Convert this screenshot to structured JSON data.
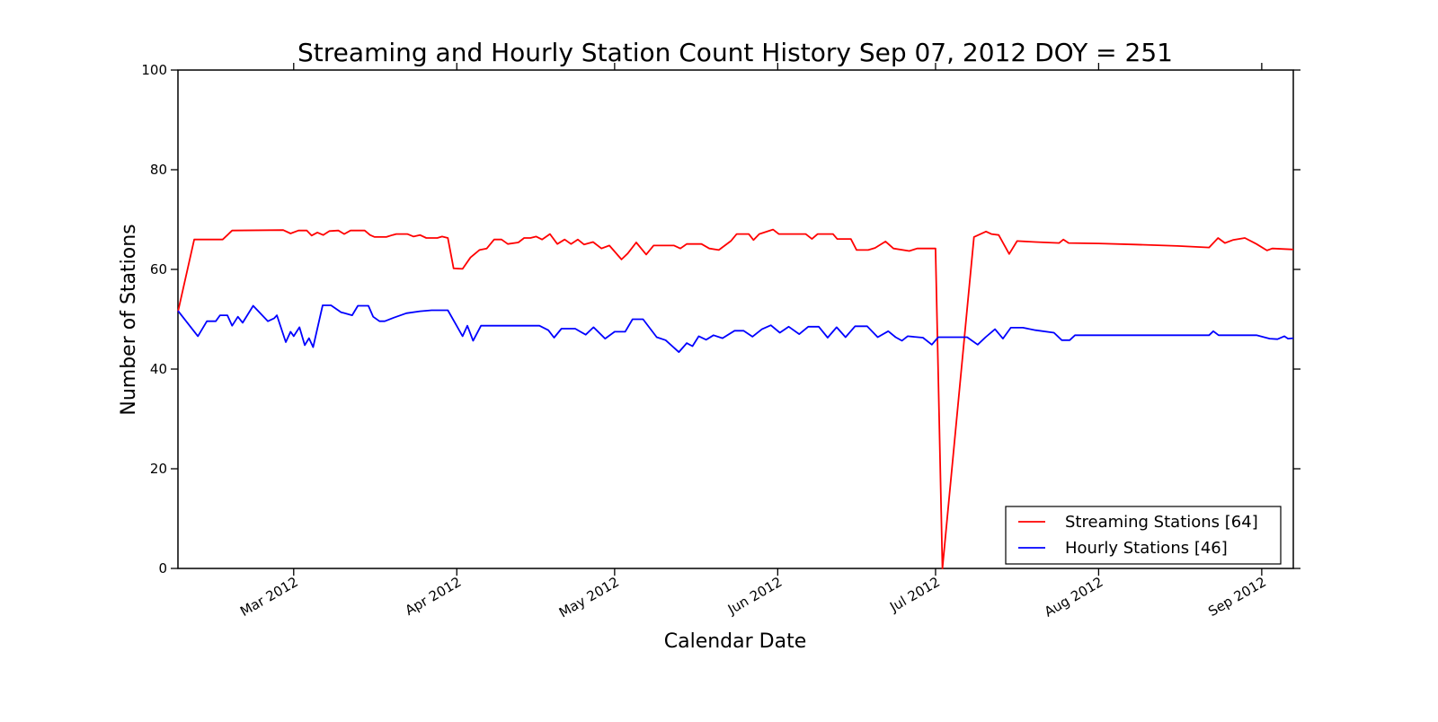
{
  "figure": {
    "title": "Streaming and Hourly Station Count History Sep 07, 2012 DOY = 251",
    "xlabel": "Calendar Date",
    "ylabel": "Number of Stations",
    "background_color": "#ffffff",
    "axes_color": "#000000"
  },
  "legend": {
    "position": "lower right",
    "entries": [
      {
        "label": "Streaming Stations [64]",
        "color": "#ff0000"
      },
      {
        "label": "Hourly Stations [46]",
        "color": "#0000ff"
      }
    ]
  },
  "chart_data": {
    "type": "line",
    "title": "Streaming and Hourly Station Count History Sep 07, 2012 DOY = 251",
    "xlabel": "Calendar Date",
    "ylabel": "Number of Stations",
    "ylim": [
      0,
      100
    ],
    "yticks": [
      0,
      20,
      40,
      60,
      80,
      100
    ],
    "grid": false,
    "x_axis_unit": "days, day 0 = Feb 08 2012, day 212 = Sep 07 2012",
    "xlim_days": [
      0,
      212
    ],
    "xticks": [
      {
        "day": 22,
        "label": "Mar 2012"
      },
      {
        "day": 53,
        "label": "Apr 2012"
      },
      {
        "day": 83,
        "label": "May 2012"
      },
      {
        "day": 114,
        "label": "Jun 2012"
      },
      {
        "day": 144,
        "label": "Jul 2012"
      },
      {
        "day": 175,
        "label": "Aug 2012"
      },
      {
        "day": 206,
        "label": "Sep 2012"
      }
    ],
    "series": [
      {
        "name": "Streaming Stations [64]",
        "color": "#ff0000",
        "final_value": 64,
        "points": [
          [
            0,
            51.5
          ],
          [
            3.1,
            66
          ],
          [
            8.5,
            66
          ],
          [
            10.3,
            67.8
          ],
          [
            20,
            67.9
          ],
          [
            21.4,
            67.2
          ],
          [
            22.9,
            67.8
          ],
          [
            24.5,
            67.8
          ],
          [
            25.4,
            66.8
          ],
          [
            26.5,
            67.4
          ],
          [
            27.6,
            66.9
          ],
          [
            28.8,
            67.7
          ],
          [
            30.5,
            67.8
          ],
          [
            31.6,
            67.1
          ],
          [
            32.8,
            67.8
          ],
          [
            35.5,
            67.8
          ],
          [
            36.5,
            66.9
          ],
          [
            37.4,
            66.5
          ],
          [
            39.6,
            66.5
          ],
          [
            40.8,
            66.9
          ],
          [
            41.5,
            67.1
          ],
          [
            43.6,
            67.1
          ],
          [
            44.8,
            66.6
          ],
          [
            46,
            66.9
          ],
          [
            47.2,
            66.3
          ],
          [
            49.3,
            66.3
          ],
          [
            50.2,
            66.6
          ],
          [
            51.3,
            66.3
          ],
          [
            52.4,
            60.2
          ],
          [
            54.1,
            60.1
          ],
          [
            55.6,
            62.4
          ],
          [
            57.3,
            63.9
          ],
          [
            58.7,
            64.2
          ],
          [
            60.1,
            66
          ],
          [
            61.5,
            66
          ],
          [
            62.7,
            65.1
          ],
          [
            64.7,
            65.4
          ],
          [
            65.8,
            66.3
          ],
          [
            67,
            66.3
          ],
          [
            68.1,
            66.6
          ],
          [
            69.2,
            66
          ],
          [
            70.7,
            67.1
          ],
          [
            72.1,
            65.1
          ],
          [
            73.5,
            66
          ],
          [
            74.7,
            65.1
          ],
          [
            76,
            66
          ],
          [
            77.2,
            65
          ],
          [
            78.9,
            65.5
          ],
          [
            80.5,
            64.2
          ],
          [
            82,
            64.8
          ],
          [
            84.3,
            62
          ],
          [
            85.5,
            63.2
          ],
          [
            87.1,
            65.4
          ],
          [
            89,
            63
          ],
          [
            90.4,
            64.8
          ],
          [
            94.3,
            64.8
          ],
          [
            95.5,
            64.2
          ],
          [
            96.7,
            65.1
          ],
          [
            99.5,
            65.1
          ],
          [
            101,
            64.2
          ],
          [
            102.8,
            63.9
          ],
          [
            105.1,
            65.7
          ],
          [
            106.2,
            67.1
          ],
          [
            108.5,
            67.1
          ],
          [
            109.4,
            65.9
          ],
          [
            110.5,
            67.1
          ],
          [
            113.1,
            68
          ],
          [
            114.2,
            67.1
          ],
          [
            119.3,
            67.1
          ],
          [
            120.5,
            66.1
          ],
          [
            121.6,
            67.1
          ],
          [
            124.5,
            67.1
          ],
          [
            125.3,
            66.1
          ],
          [
            127.9,
            66.1
          ],
          [
            129,
            63.9
          ],
          [
            131.2,
            63.9
          ],
          [
            132.5,
            64.3
          ],
          [
            134.5,
            65.6
          ],
          [
            136,
            64.2
          ],
          [
            139,
            63.7
          ],
          [
            140.5,
            64.2
          ],
          [
            144,
            64.2
          ],
          [
            145.3,
            0
          ],
          [
            151.3,
            66.5
          ],
          [
            153.6,
            67.6
          ],
          [
            154.6,
            67.1
          ],
          [
            156,
            66.9
          ],
          [
            158,
            63.1
          ],
          [
            159.5,
            65.7
          ],
          [
            163,
            65.5
          ],
          [
            167.5,
            65.3
          ],
          [
            168.3,
            66
          ],
          [
            169.3,
            65.3
          ],
          [
            175,
            65.2
          ],
          [
            182,
            65
          ],
          [
            190,
            64.7
          ],
          [
            196,
            64.4
          ],
          [
            197.7,
            66.3
          ],
          [
            199,
            65.3
          ],
          [
            200.5,
            65.9
          ],
          [
            202.8,
            66.3
          ],
          [
            205,
            65.1
          ],
          [
            207,
            63.8
          ],
          [
            208,
            64.2
          ],
          [
            212,
            64
          ]
        ]
      },
      {
        "name": "Hourly Stations [46]",
        "color": "#0000ff",
        "final_value": 46,
        "points": [
          [
            0,
            51.7
          ],
          [
            3.8,
            46.6
          ],
          [
            5.5,
            49.6
          ],
          [
            7.2,
            49.6
          ],
          [
            8,
            50.8
          ],
          [
            9.4,
            50.8
          ],
          [
            10.3,
            48.7
          ],
          [
            11.4,
            50.5
          ],
          [
            12.3,
            49.3
          ],
          [
            14.3,
            52.7
          ],
          [
            17.1,
            49.6
          ],
          [
            18.3,
            50.2
          ],
          [
            18.8,
            50.8
          ],
          [
            20.5,
            45.4
          ],
          [
            21.4,
            47.5
          ],
          [
            22,
            46.6
          ],
          [
            23.1,
            48.4
          ],
          [
            24.1,
            44.8
          ],
          [
            24.9,
            46.2
          ],
          [
            25.7,
            44.4
          ],
          [
            27.5,
            52.8
          ],
          [
            29.1,
            52.8
          ],
          [
            31,
            51.4
          ],
          [
            33.1,
            50.8
          ],
          [
            34.2,
            52.7
          ],
          [
            36.2,
            52.7
          ],
          [
            37.1,
            50.5
          ],
          [
            38.3,
            49.6
          ],
          [
            39.3,
            49.6
          ],
          [
            41,
            50.3
          ],
          [
            43.4,
            51.2
          ],
          [
            46,
            51.6
          ],
          [
            48.2,
            51.8
          ],
          [
            51.3,
            51.8
          ],
          [
            54.1,
            46.6
          ],
          [
            55,
            48.7
          ],
          [
            56.1,
            45.7
          ],
          [
            57.6,
            48.7
          ],
          [
            68.7,
            48.7
          ],
          [
            70.4,
            47.8
          ],
          [
            71.5,
            46.3
          ],
          [
            72.9,
            48.1
          ],
          [
            75.5,
            48.1
          ],
          [
            76.5,
            47.5
          ],
          [
            77.5,
            46.9
          ],
          [
            79,
            48.4
          ],
          [
            81.2,
            46.1
          ],
          [
            83,
            47.5
          ],
          [
            85,
            47.5
          ],
          [
            86.4,
            50
          ],
          [
            88.4,
            50
          ],
          [
            91,
            46.4
          ],
          [
            92.7,
            45.8
          ],
          [
            95.2,
            43.4
          ],
          [
            96.7,
            45.2
          ],
          [
            97.8,
            44.6
          ],
          [
            99,
            46.6
          ],
          [
            100.4,
            45.9
          ],
          [
            101.8,
            46.8
          ],
          [
            103.5,
            46.2
          ],
          [
            105.8,
            47.7
          ],
          [
            107.5,
            47.7
          ],
          [
            109.2,
            46.5
          ],
          [
            111,
            48
          ],
          [
            112.7,
            48.8
          ],
          [
            114.4,
            47.3
          ],
          [
            116.1,
            48.5
          ],
          [
            118.1,
            47
          ],
          [
            119.8,
            48.5
          ],
          [
            121.8,
            48.5
          ],
          [
            123.5,
            46.3
          ],
          [
            125.2,
            48.4
          ],
          [
            126.9,
            46.4
          ],
          [
            128.7,
            48.6
          ],
          [
            131,
            48.6
          ],
          [
            133,
            46.4
          ],
          [
            135,
            47.6
          ],
          [
            136.4,
            46.4
          ],
          [
            137.6,
            45.7
          ],
          [
            138.7,
            46.6
          ],
          [
            141.6,
            46.3
          ],
          [
            143.3,
            44.9
          ],
          [
            144.5,
            46.4
          ],
          [
            150,
            46.4
          ],
          [
            152,
            44.9
          ],
          [
            153.5,
            46.4
          ],
          [
            155.3,
            48
          ],
          [
            156.8,
            46.1
          ],
          [
            158.3,
            48.3
          ],
          [
            160.6,
            48.3
          ],
          [
            163,
            47.8
          ],
          [
            166.5,
            47.3
          ],
          [
            168,
            45.8
          ],
          [
            169.5,
            45.8
          ],
          [
            170.5,
            46.8
          ],
          [
            190,
            46.8
          ],
          [
            196,
            46.8
          ],
          [
            196.8,
            47.6
          ],
          [
            197.8,
            46.8
          ],
          [
            205,
            46.8
          ],
          [
            207.5,
            46.1
          ],
          [
            209,
            46
          ],
          [
            210.3,
            46.6
          ],
          [
            211,
            46.1
          ],
          [
            212,
            46.2
          ]
        ]
      }
    ]
  }
}
